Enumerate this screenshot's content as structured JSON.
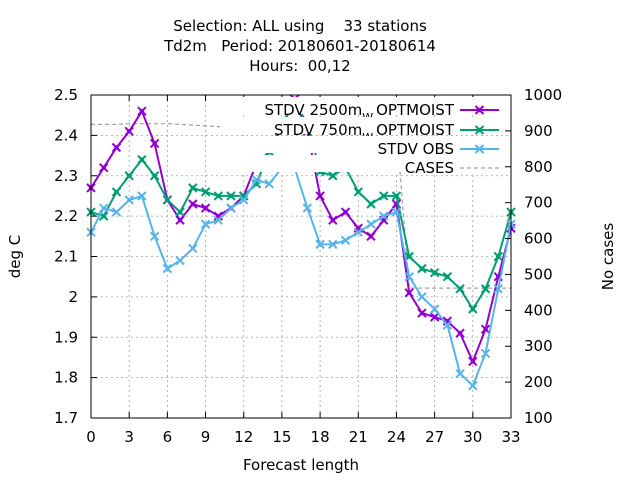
{
  "title": {
    "line1": "Selection: ALL using    33 stations",
    "line2": "Td2m   Period: 20180601-20180614",
    "line3": "Hours:  00,12"
  },
  "chart_data": {
    "type": "line",
    "xlabel": "Forecast length",
    "ylabel": "deg C",
    "y2label": "No cases",
    "xlim": [
      0,
      33
    ],
    "ylim": [
      1.7,
      2.5
    ],
    "y2lim": [
      100,
      1000
    ],
    "xticks": [
      0,
      3,
      6,
      9,
      12,
      15,
      18,
      21,
      24,
      27,
      30,
      33
    ],
    "yticks": [
      1.7,
      1.8,
      1.9,
      2,
      2.1,
      2.2,
      2.3,
      2.4,
      2.5
    ],
    "y2ticks": [
      100,
      200,
      300,
      400,
      500,
      600,
      700,
      800,
      900,
      1000
    ],
    "grid": true,
    "legend_position": "top-right",
    "x": [
      0,
      1,
      2,
      3,
      4,
      5,
      6,
      7,
      8,
      9,
      10,
      11,
      12,
      13,
      14,
      15,
      16,
      17,
      18,
      19,
      20,
      21,
      22,
      23,
      24,
      25,
      26,
      27,
      28,
      29,
      30,
      31,
      32,
      33
    ],
    "series": [
      {
        "name": "STDV 2500m",
        "name_sub": "W",
        "name_rest": "OPTMOIST",
        "color": "#9400d3",
        "marker": "x-filled",
        "axis": "y",
        "values": [
          2.27,
          2.32,
          2.37,
          2.41,
          2.46,
          2.38,
          2.24,
          2.19,
          2.23,
          2.22,
          2.2,
          2.22,
          2.25,
          2.33,
          2.36,
          2.42,
          2.49,
          2.41,
          2.25,
          2.19,
          2.21,
          2.17,
          2.15,
          2.19,
          2.23,
          2.01,
          1.96,
          1.95,
          1.94,
          1.91,
          1.84,
          1.92,
          2.05,
          2.17
        ]
      },
      {
        "name": "STDV 750m",
        "name_sub": "W",
        "name_rest": "OPTMOIST",
        "color": "#009e73",
        "marker": "x-filled",
        "axis": "y",
        "values": [
          2.21,
          2.2,
          2.26,
          2.3,
          2.34,
          2.3,
          2.24,
          2.21,
          2.27,
          2.26,
          2.25,
          2.25,
          2.25,
          2.28,
          2.36,
          2.43,
          2.48,
          2.43,
          2.31,
          2.3,
          2.32,
          2.26,
          2.23,
          2.25,
          2.25,
          2.1,
          2.07,
          2.06,
          2.05,
          2.02,
          1.97,
          2.02,
          2.1,
          2.21
        ]
      },
      {
        "name": "STDV OBS",
        "color": "#56b4e9",
        "marker": "x",
        "axis": "y",
        "values": [
          2.16,
          2.22,
          2.21,
          2.24,
          2.25,
          2.15,
          2.07,
          2.09,
          2.12,
          2.18,
          2.19,
          2.22,
          2.24,
          2.29,
          2.28,
          2.32,
          2.32,
          2.22,
          2.13,
          2.13,
          2.14,
          2.16,
          2.18,
          2.2,
          2.21,
          2.05,
          2.0,
          1.97,
          1.93,
          1.81,
          1.78,
          1.86,
          2.02,
          2.18
        ]
      },
      {
        "name": "CASES",
        "color": "#a0a0a0",
        "dashed": true,
        "axis": "y2",
        "values": [
          918,
          918,
          918,
          920,
          920,
          920,
          920,
          918,
          916,
          914,
          912,
          912,
          912,
          914,
          916,
          916,
          916,
          914,
          912,
          912,
          910,
          910,
          910,
          910,
          910,
          462,
          462,
          462,
          462,
          462,
          462,
          462,
          462,
          462
        ]
      }
    ]
  }
}
